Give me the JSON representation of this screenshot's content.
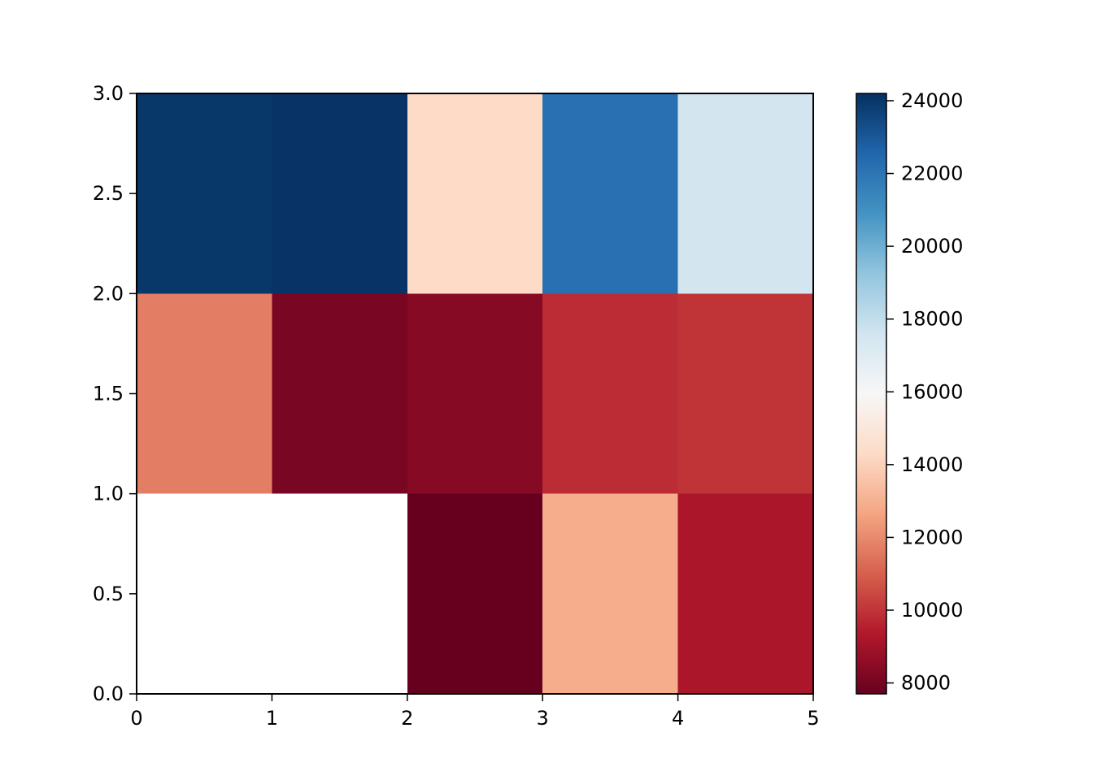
{
  "chart_data": {
    "type": "heatmap",
    "colormap": "RdBu",
    "x_edges": [
      0,
      1,
      2,
      3,
      4,
      5
    ],
    "y_edges": [
      0,
      1,
      2,
      3
    ],
    "xlim": [
      0,
      5
    ],
    "ylim": [
      0,
      3
    ],
    "x_ticks": [
      "0",
      "1",
      "2",
      "3",
      "4",
      "5"
    ],
    "y_ticks": [
      "0.0",
      "0.5",
      "1.0",
      "1.5",
      "2.0",
      "2.5",
      "3.0"
    ],
    "values": [
      [
        null,
        null,
        7700,
        12900,
        9200
      ],
      [
        11700,
        8100,
        8400,
        9800,
        10000
      ],
      [
        24000,
        24100,
        14300,
        22200,
        17500
      ]
    ],
    "colorbar": {
      "min": 7700,
      "max": 24200,
      "ticks": [
        "8000",
        "10000",
        "12000",
        "14000",
        "16000",
        "18000",
        "20000",
        "22000",
        "24000"
      ]
    },
    "grid": false,
    "title": "",
    "xlabel": "",
    "ylabel": ""
  }
}
